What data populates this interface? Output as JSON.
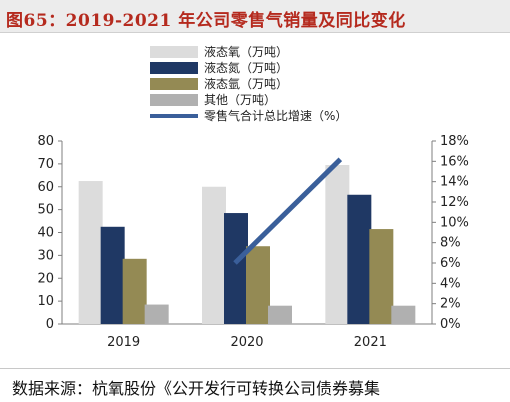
{
  "figure": {
    "title": "图65：2019-2021 年公司零售气销量及同比变化",
    "source": "数据来源：杭氧股份《公开发行可转换公司债券募集"
  },
  "colors": {
    "title": "#b52a1e",
    "liquid_oxygen": "#dcdcdc",
    "liquid_nitrogen": "#1f3864",
    "liquid_argon": "#948a54",
    "other": "#b0b0b0",
    "growth_line": "#3a5f9a"
  },
  "chart_data": {
    "type": "bar",
    "categories": [
      "2019",
      "2020",
      "2021"
    ],
    "series": [
      {
        "name": "液态氧（万吨）",
        "values": [
          62.5,
          60,
          69.5
        ],
        "axis": "left",
        "color": "#dcdcdc"
      },
      {
        "name": "液态氮（万吨）",
        "values": [
          42.5,
          48.5,
          56.5
        ],
        "axis": "left",
        "color": "#1f3864"
      },
      {
        "name": "液态氩（万吨）",
        "values": [
          28.5,
          34,
          41.5
        ],
        "axis": "left",
        "color": "#948a54"
      },
      {
        "name": "其他（万吨）",
        "values": [
          8.5,
          8,
          8
        ],
        "axis": "left",
        "color": "#b0b0b0"
      },
      {
        "name": "零售气合计总比增速（%）",
        "type": "line",
        "values": [
          null,
          6,
          16.2
        ],
        "axis": "right",
        "color": "#3a5f9a"
      }
    ],
    "ylim": [
      0,
      80
    ],
    "yticks": [
      "0",
      "10",
      "20",
      "30",
      "40",
      "50",
      "60",
      "70",
      "80"
    ],
    "y2lim": [
      0,
      18
    ],
    "y2ticks": [
      "0%",
      "2%",
      "4%",
      "6%",
      "8%",
      "10%",
      "12%",
      "14%",
      "16%",
      "18%"
    ],
    "legend_position": "top-center"
  }
}
